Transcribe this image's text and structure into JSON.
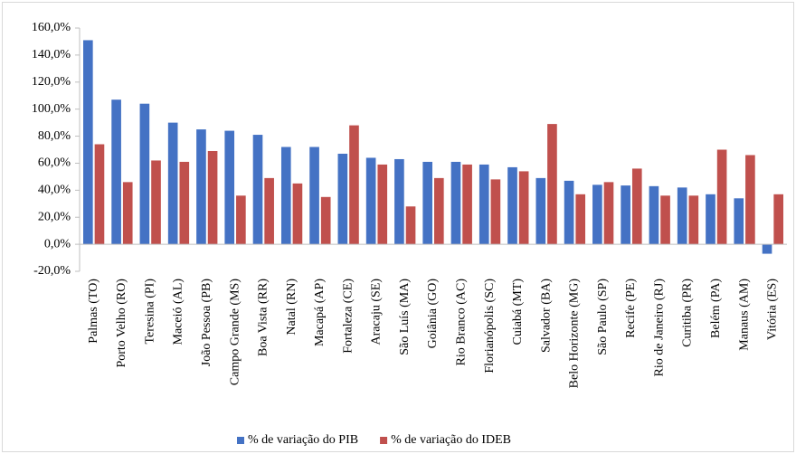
{
  "chart_data": {
    "type": "bar",
    "categories": [
      "Palmas (TO)",
      "Porto Velho (RO)",
      "Teresina (PI)",
      "Maceió (AL)",
      "João Pessoa (PB)",
      "Campo Grande (MS)",
      "Boa Vista (RR)",
      "Natal (RN)",
      "Macapá (AP)",
      "Fortaleza (CE)",
      "Aracaju (SE)",
      "São Luís (MA)",
      "Goiânia (GO)",
      "Rio Branco (AC)",
      "Florianópolis (SC)",
      "Cuiabá (MT)",
      "Salvador (BA)",
      "Belo Horizonte (MG)",
      "São Paulo (SP)",
      "Recife (PE)",
      "Rio de Janeiro (RJ)",
      "Curitiba (PR)",
      "Belém (PA)",
      "Manaus (AM)",
      "Vitória (ES)"
    ],
    "series": [
      {
        "name": "% de variação do PIB",
        "color": "#4472c4",
        "values": [
          151,
          107,
          104,
          90,
          85,
          84,
          81,
          72,
          72,
          67,
          64,
          63,
          61,
          61,
          59,
          57,
          49,
          47,
          44,
          43.5,
          43,
          42,
          37,
          34,
          -7
        ]
      },
      {
        "name": "% de variação do IDEB",
        "color": "#c0504d",
        "values": [
          74,
          46,
          62,
          61,
          69,
          36,
          49,
          45,
          35,
          88,
          59,
          28,
          49,
          59,
          48,
          54,
          89,
          37,
          46,
          56,
          36,
          36,
          70,
          66,
          37
        ]
      }
    ],
    "ylim": [
      -20,
      160
    ],
    "yticks": [
      {
        "value": -20,
        "label": "-20,0%"
      },
      {
        "value": 0,
        "label": "0,0%"
      },
      {
        "value": 20,
        "label": "20,0%"
      },
      {
        "value": 40,
        "label": "40,0%"
      },
      {
        "value": 60,
        "label": "60,0%"
      },
      {
        "value": 80,
        "label": "80,0%"
      },
      {
        "value": 100,
        "label": "100,0%"
      },
      {
        "value": 120,
        "label": "120,0%"
      },
      {
        "value": 140,
        "label": "140,0%"
      },
      {
        "value": 160,
        "label": "160,0%"
      }
    ],
    "grid": false,
    "legend": "bottom"
  }
}
